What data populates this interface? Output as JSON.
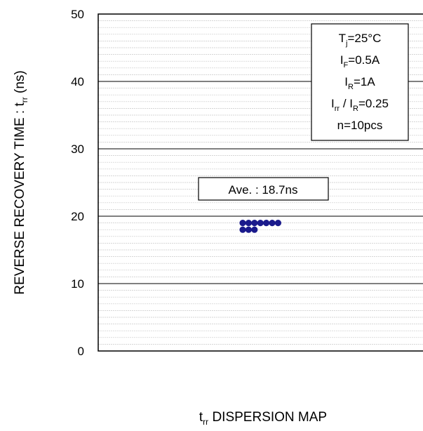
{
  "chart_data": {
    "type": "scatter",
    "ylabel": {
      "text": "REVERSE RECOVERY TIME : t",
      "sub": "rr",
      "unit": " (ns)"
    },
    "xlabel": {
      "prefix": "t",
      "sub": "rr",
      "text": " DISPERSION MAP"
    },
    "ylim": [
      0,
      50
    ],
    "y_ticks": [
      "0",
      "10",
      "20",
      "30",
      "40",
      "50"
    ],
    "grid": true,
    "conditions": [
      {
        "main": "T",
        "sub": "j",
        "rest": "=25°C"
      },
      {
        "main": "I",
        "sub": "F",
        "rest": "=0.5A"
      },
      {
        "main": "I",
        "sub": "R",
        "rest": "=1A"
      },
      {
        "main": "I",
        "sub": "rr",
        "rest": " / I",
        "sub2": "R",
        "rest2": "=0.25"
      },
      {
        "main": "",
        "sub": "",
        "rest": "n=10pcs"
      }
    ],
    "annotation": "Ave. : 18.7ns",
    "series": [
      {
        "values": [
          19,
          19,
          19,
          19,
          19,
          19,
          19,
          18,
          18,
          18
        ],
        "color": "#1a1a8c"
      }
    ]
  }
}
